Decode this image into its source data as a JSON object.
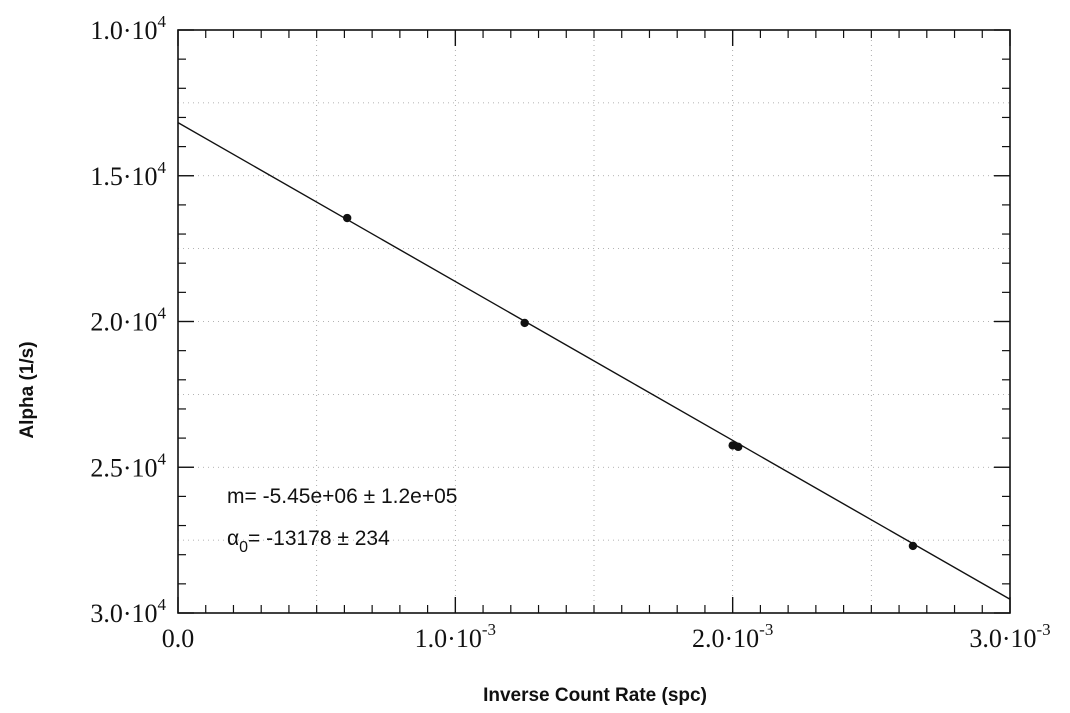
{
  "chart_data": {
    "type": "scatter",
    "xlabel": "Inverse Count Rate (spc)",
    "ylabel": "Alpha (1/s)",
    "xlim": [
      0,
      0.003
    ],
    "ylim": [
      30000,
      10000
    ],
    "y_axis_inverted": true,
    "grid": true,
    "x_ticks": [
      {
        "value": 0,
        "mantissa": "0.0",
        "exponent": ""
      },
      {
        "value": 0.001,
        "mantissa": "1.0·10",
        "exponent": "-3"
      },
      {
        "value": 0.002,
        "mantissa": "2.0·10",
        "exponent": "-3"
      },
      {
        "value": 0.003,
        "mantissa": "3.0·10",
        "exponent": "-3"
      }
    ],
    "y_ticks": [
      {
        "value": 10000,
        "mantissa": "1.0·10",
        "exponent": "4"
      },
      {
        "value": 15000,
        "mantissa": "1.5·10",
        "exponent": "4"
      },
      {
        "value": 20000,
        "mantissa": "2.0·10",
        "exponent": "4"
      },
      {
        "value": 25000,
        "mantissa": "2.5·10",
        "exponent": "4"
      },
      {
        "value": 30000,
        "mantissa": "3.0·10",
        "exponent": "4"
      }
    ],
    "series": [
      {
        "points": [
          {
            "x": 0.00061,
            "y": 16450
          },
          {
            "x": 0.00125,
            "y": 20050
          },
          {
            "x": 0.002,
            "y": 24250
          },
          {
            "x": 0.00202,
            "y": 24300
          },
          {
            "x": 0.00265,
            "y": 27700
          }
        ]
      }
    ],
    "fit_line": {
      "intercept": 13178,
      "slope": 5450000
    },
    "annotations": {
      "slope_text": "m= -5.45e+06 ± 1.2e+05",
      "alpha_symbol": "α",
      "alpha_sub": "0",
      "alpha_text": "= -13178 ± 234"
    }
  }
}
